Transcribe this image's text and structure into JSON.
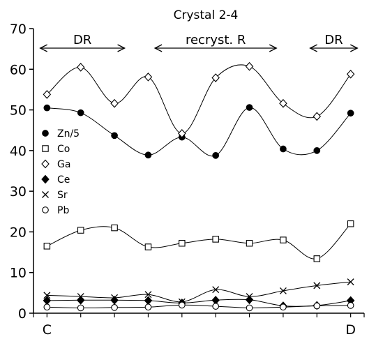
{
  "chart_data": {
    "type": "line",
    "title": "Crystal 2-4",
    "x": [
      0,
      1,
      2,
      3,
      4,
      5,
      6,
      7,
      8,
      9
    ],
    "xlim": [
      -0.4,
      9.4
    ],
    "ylim": [
      0,
      70
    ],
    "yticks": [
      0,
      10,
      20,
      30,
      40,
      50,
      60,
      70
    ],
    "end_labels": {
      "start": "C",
      "end": "D"
    },
    "series": [
      {
        "name": "Zn/5",
        "marker": "filled-circle",
        "values": [
          50.5,
          49.3,
          43.7,
          38.9,
          43.3,
          38.8,
          50.6,
          40.4,
          40.0,
          49.2
        ]
      },
      {
        "name": "Co",
        "marker": "open-square",
        "values": [
          16.5,
          20.4,
          21.0,
          16.3,
          17.2,
          18.2,
          17.2,
          18.0,
          13.4,
          22.0
        ]
      },
      {
        "name": "Ga",
        "marker": "open-diamond",
        "values": [
          53.8,
          60.5,
          51.6,
          58.1,
          44.2,
          57.9,
          60.7,
          51.6,
          48.4,
          58.8
        ]
      },
      {
        "name": "Ce",
        "marker": "filled-diamond",
        "values": [
          3.1,
          3.2,
          3.2,
          3.1,
          2.5,
          3.2,
          3.3,
          1.8,
          1.9,
          3.1
        ]
      },
      {
        "name": "Sr",
        "marker": "cross",
        "values": [
          4.4,
          4.1,
          3.8,
          4.6,
          2.8,
          5.8,
          4.1,
          5.5,
          6.8,
          7.7
        ]
      },
      {
        "name": "Pb",
        "marker": "open-circle",
        "values": [
          1.5,
          1.3,
          1.4,
          1.5,
          2.0,
          1.7,
          1.3,
          1.5,
          1.8,
          1.9
        ]
      }
    ],
    "annotations": [
      {
        "text": "DR",
        "x_from": -0.2,
        "x_to": 2.3
      },
      {
        "text": "recryst. R",
        "x_from": 3.2,
        "x_to": 6.8
      },
      {
        "text": "DR",
        "x_from": 7.8,
        "x_to": 9.2
      }
    ],
    "legend_position": "left-middle"
  }
}
